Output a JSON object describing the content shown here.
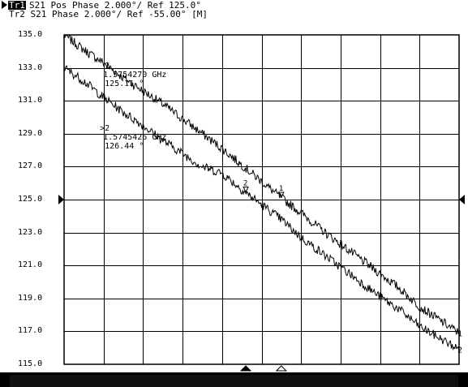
{
  "header": {
    "tr1_badge": "Tr1",
    "tr1_text": "S21 Pos Phase 2.000°/ Ref 125.0°",
    "tr2_text": "Tr2 S21 Phase 2.000°/ Ref -55.00° [M]"
  },
  "markers": [
    {
      "id": "1",
      "prefix": " 1",
      "freq": "1.5754270 GHz",
      "value": "125.11 °"
    },
    {
      "id": "2",
      "prefix": ">2",
      "freq": "1.5745426 GHz",
      "value": "126.44 °"
    }
  ],
  "colors": {
    "background": "#ffffff",
    "trace": "#000000",
    "grid": "#000000"
  },
  "chart_data": {
    "type": "line",
    "title": "",
    "xlabel": "",
    "ylabel": "",
    "ylim": [
      115,
      135
    ],
    "yticks": [
      "135.0",
      "133.0",
      "131.0",
      "129.0",
      "127.0",
      "125.0",
      "123.0",
      "121.0",
      "119.0",
      "117.0",
      "115.0"
    ],
    "x_divisions": 10,
    "grid": true,
    "reference_value": 125.0,
    "series": [
      {
        "trace_label": "1",
        "x": [
          0,
          0.05,
          0.1,
          0.15,
          0.2,
          0.25,
          0.3,
          0.35,
          0.4,
          0.45,
          0.5,
          0.55,
          0.6,
          0.65,
          0.7,
          0.75,
          0.8,
          0.85,
          0.9,
          0.95,
          1.0
        ],
        "values": [
          135.0,
          134.1,
          133.3,
          132.4,
          131.6,
          130.8,
          129.9,
          129.0,
          128.1,
          127.1,
          126.1,
          125.1,
          124.2,
          123.2,
          122.3,
          121.4,
          120.5,
          119.6,
          118.5,
          117.7,
          116.9
        ],
        "marker": {
          "x": 0.55,
          "value": 125.11
        }
      },
      {
        "trace_label": "2",
        "x": [
          0,
          0.05,
          0.1,
          0.15,
          0.2,
          0.25,
          0.3,
          0.35,
          0.4,
          0.45,
          0.5,
          0.55,
          0.6,
          0.65,
          0.7,
          0.75,
          0.8,
          0.85,
          0.9,
          0.95,
          1.0
        ],
        "values": [
          133.0,
          132.2,
          131.2,
          130.3,
          129.5,
          128.6,
          127.8,
          127.0,
          126.6,
          125.6,
          124.7,
          123.8,
          122.7,
          121.8,
          120.9,
          120.0,
          119.1,
          118.3,
          117.3,
          116.6,
          115.9
        ],
        "marker": {
          "x": 0.46,
          "value": 126.44
        }
      }
    ],
    "stimulus_markers_x": [
      0.46,
      0.55
    ]
  }
}
